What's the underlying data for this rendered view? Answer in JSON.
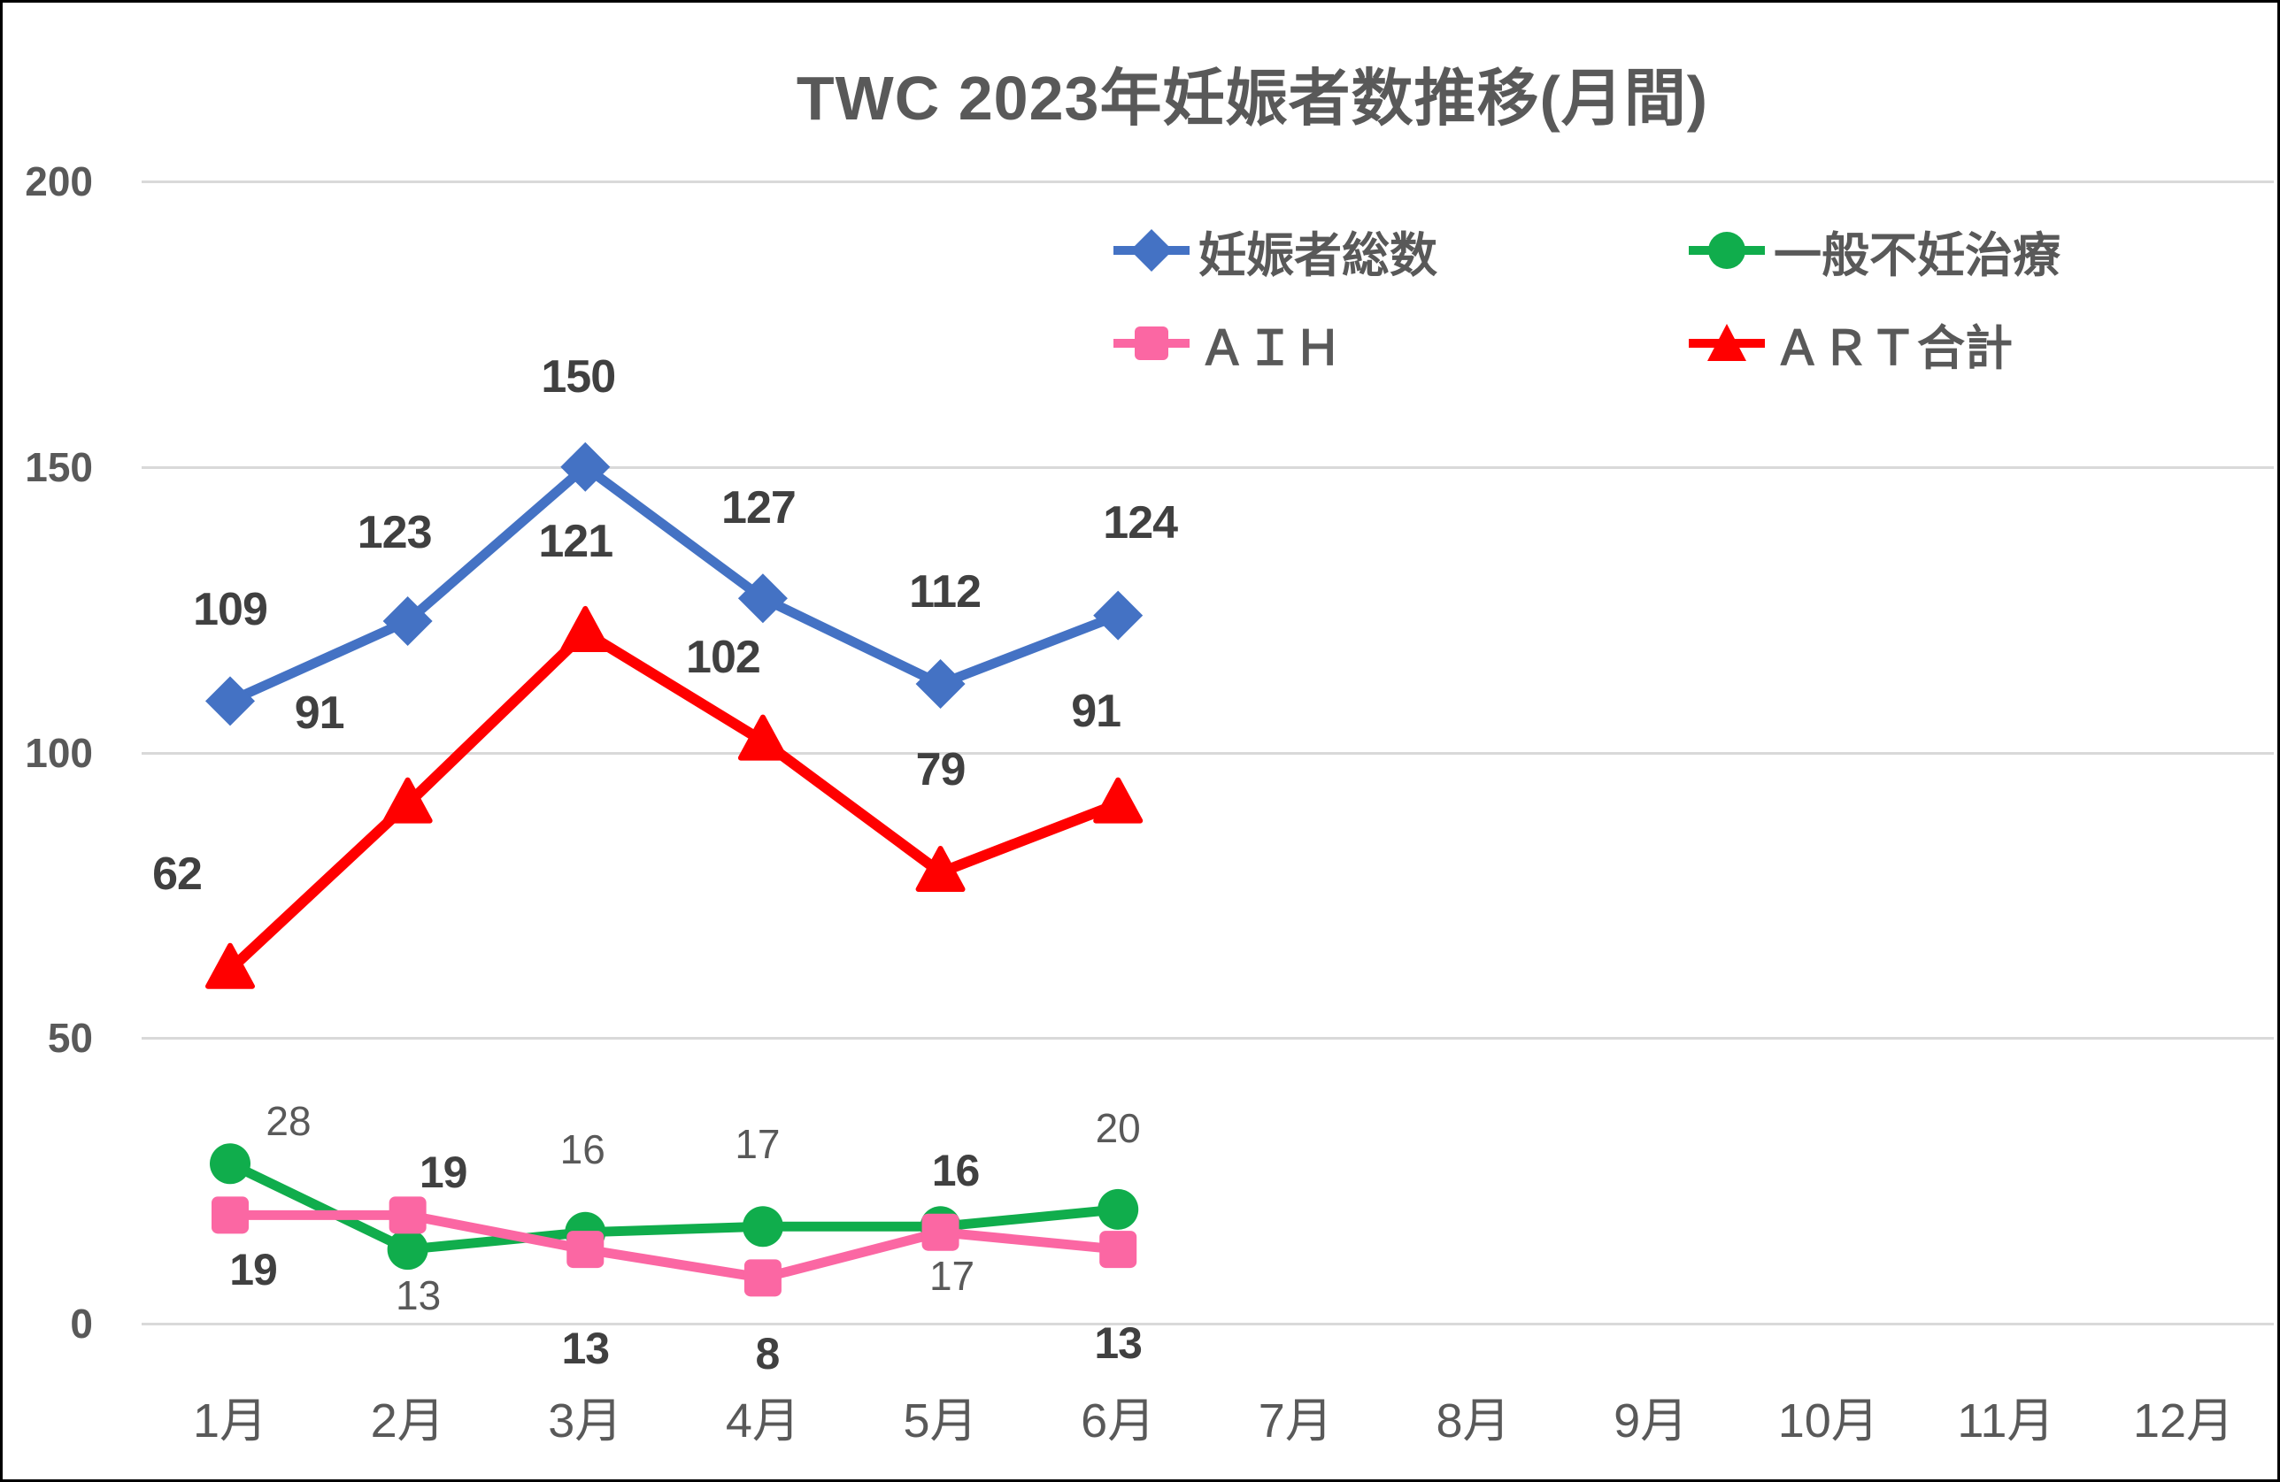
{
  "title": "TWC 2023年妊娠者数推移(月間)",
  "legend": {
    "items": [
      {
        "label": "妊娠者総数",
        "series_index": 0,
        "row": 0,
        "col": 0
      },
      {
        "label": "一般不妊治療",
        "series_index": 1,
        "row": 0,
        "col": 1
      },
      {
        "label": "ＡＩＨ",
        "series_index": 2,
        "row": 1,
        "col": 0
      },
      {
        "label": "ＡＲＴ合計",
        "series_index": 3,
        "row": 1,
        "col": 1
      }
    ]
  },
  "colors": {
    "blue": "#4472C4",
    "green": "#10AD4C",
    "pink": "#FB67A3",
    "red": "#FF0000",
    "gridline": "#D9D9D9",
    "axis_text": "#595959",
    "data_label_dark": "#404040",
    "background": "#FFFFFF",
    "frame_border": "#000000"
  },
  "chart_data": {
    "type": "line",
    "title": "TWC 2023年妊娠者数推移(月間)",
    "categories": [
      "1月",
      "2月",
      "3月",
      "4月",
      "5月",
      "6月",
      "7月",
      "8月",
      "9月",
      "10月",
      "11月",
      "12月"
    ],
    "y_ticks": [
      0,
      50,
      100,
      150,
      200
    ],
    "ylim": [
      0,
      200
    ],
    "grid": true,
    "legend_position": "top-right-two-columns",
    "series": [
      {
        "name": "妊娠者総数",
        "color": "#4472C4",
        "marker": "diamond",
        "line_width": 11,
        "values": [
          109,
          123,
          150,
          127,
          112,
          124
        ],
        "label_class": "lbl-big",
        "label_offsets": [
          [
            0,
            -103
          ],
          [
            -15,
            -100
          ],
          [
            -8,
            -102
          ],
          [
            -5,
            -102
          ],
          [
            5,
            -104
          ],
          [
            25,
            -105
          ]
        ]
      },
      {
        "name": "一般不妊治療",
        "color": "#10AD4C",
        "marker": "circle",
        "line_width": 11,
        "values": [
          28,
          13,
          16,
          17,
          17,
          20
        ],
        "label_class": "lbl-green",
        "label_offsets": [
          [
            66,
            -48
          ],
          [
            12,
            52
          ],
          [
            -3,
            -94
          ],
          [
            -6,
            -93
          ],
          [
            13,
            56
          ],
          [
            0,
            -92
          ]
        ]
      },
      {
        "name": "ＡＩＨ",
        "color": "#FB67A3",
        "marker": "square",
        "line_width": 11,
        "values": [
          19,
          19,
          13,
          8,
          16,
          13
        ],
        "label_class": "lbl-pink",
        "label_offsets": [
          [
            26,
            62
          ],
          [
            40,
            -48
          ],
          [
            0,
            112
          ],
          [
            5,
            86
          ],
          [
            17,
            -70
          ],
          [
            0,
            106
          ]
        ]
      },
      {
        "name": "ＡＲＴ合計",
        "color": "#FF0000",
        "marker": "triangle",
        "line_width": 12,
        "values": [
          62,
          91,
          121,
          102,
          79,
          91
        ],
        "label_class": "lbl-big",
        "label_offsets": [
          [
            -60,
            -108
          ],
          [
            -100,
            -103
          ],
          [
            -11,
            -103
          ],
          [
            -45,
            -95
          ],
          [
            0,
            -116
          ],
          [
            -25,
            -105
          ]
        ]
      }
    ]
  }
}
